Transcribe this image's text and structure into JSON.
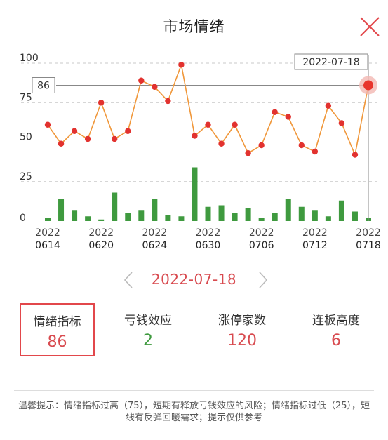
{
  "header": {
    "title": "市场情绪",
    "close_icon": "close-icon"
  },
  "chart_data": {
    "type": "bar+line",
    "yticks": [
      "100",
      "75",
      "50",
      "25",
      "0"
    ],
    "ylim": [
      0,
      100
    ],
    "x_ticks": [
      {
        "year": "2022",
        "md": "0614"
      },
      {
        "year": "2022",
        "md": "0620"
      },
      {
        "year": "2022",
        "md": "0624"
      },
      {
        "year": "2022",
        "md": "0630"
      },
      {
        "year": "2022",
        "md": "0706"
      },
      {
        "year": "2022",
        "md": "0712"
      },
      {
        "year": "2022",
        "md": "0718"
      }
    ],
    "series": [
      {
        "name": "情绪指标",
        "values": [
          61,
          49,
          57,
          52,
          75,
          52,
          57,
          89,
          85,
          76,
          99,
          54,
          61,
          49,
          61,
          43,
          48,
          69,
          66,
          48,
          44,
          73,
          62,
          42,
          86
        ]
      },
      {
        "name": "亏钱效应",
        "values": [
          2,
          14,
          7,
          3,
          1,
          18,
          5,
          7,
          14,
          4,
          3,
          34,
          9,
          10,
          5,
          8,
          2,
          5,
          14,
          9,
          7,
          3,
          13,
          6,
          2
        ]
      }
    ],
    "tooltip": {
      "date": "2022-07-18",
      "value": "86"
    },
    "colors": {
      "line": "#f0973a",
      "dot": "#e2322f",
      "bar": "#3f9a3f",
      "highlight": "#e8342c"
    }
  },
  "nav": {
    "prev_icon": "chevron-left-icon",
    "next_icon": "chevron-right-icon",
    "date": "2022-07-18"
  },
  "stats": [
    {
      "label": "情绪指标",
      "value": "86",
      "color": "#d84a4f"
    },
    {
      "label": "亏钱效应",
      "value": "2",
      "color": "#3f9a3f"
    },
    {
      "label": "涨停家数",
      "value": "120",
      "color": "#d84a4f"
    },
    {
      "label": "连板高度",
      "value": "6",
      "color": "#d84a4f"
    }
  ],
  "tip": "温馨提示：情绪指标过高（75），短期有释放亏钱效应的风险；情绪指标过低（25），短线有反弹回暖需求；提示仅供参考"
}
